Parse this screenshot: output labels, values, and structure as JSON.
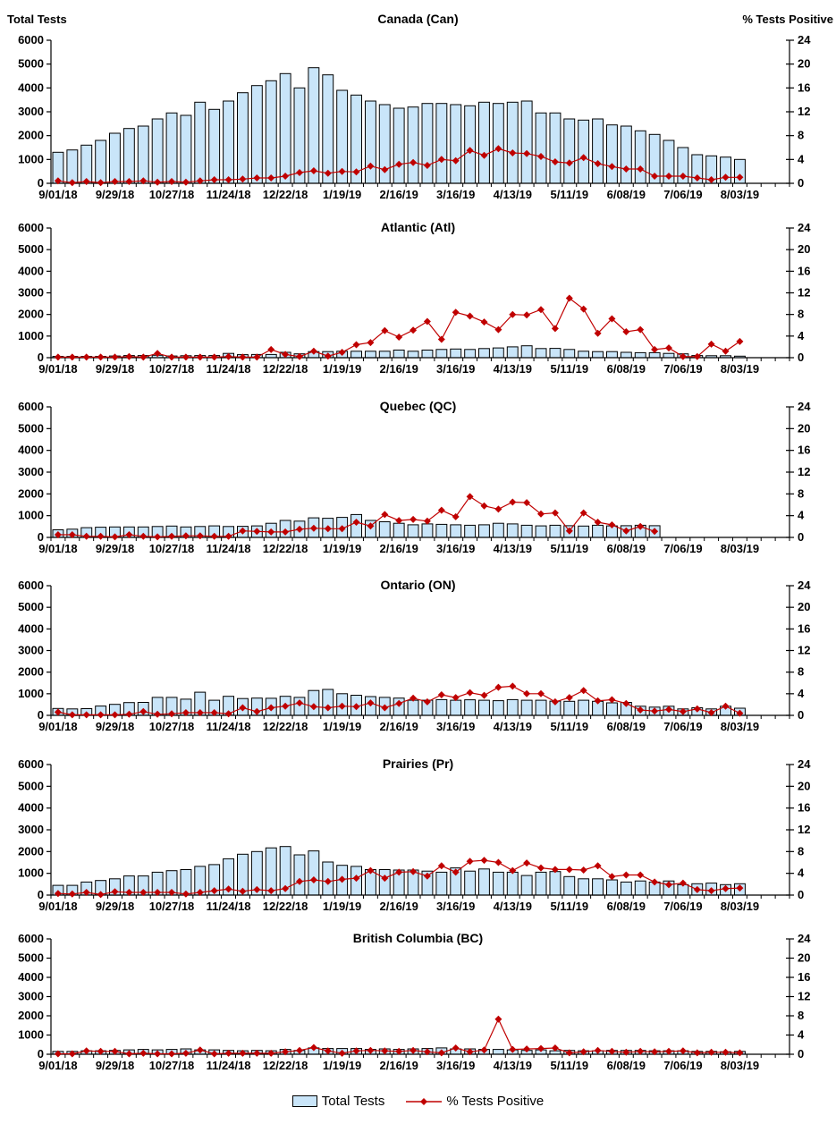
{
  "header": {
    "left_axis_title": "Total Tests",
    "right_axis_title": "% Tests  Positive"
  },
  "legend": {
    "total_tests": "Total Tests",
    "pct_positive": "% Tests Positive"
  },
  "colors": {
    "bar_fill": "#C9E5F9",
    "bar_border": "#000000",
    "line": "#C00000",
    "axis": "#000000",
    "text": "#000000"
  },
  "axes": {
    "y_left_max": 6000,
    "y_right_max": 24,
    "left_tick_labels": [
      "0",
      "1000",
      "2000",
      "3000",
      "4000",
      "5000",
      "6000"
    ],
    "right_tick_labels": [
      "0",
      "4",
      "8",
      "12",
      "16",
      "20",
      "24"
    ],
    "x_tick_labels": [
      "9/01/18",
      "9/29/18",
      "10/27/18",
      "11/24/18",
      "12/22/18",
      "1/19/19",
      "2/16/19",
      "3/16/19",
      "4/13/19",
      "5/11/19",
      "6/08/19",
      "7/06/19",
      "8/03/19"
    ],
    "x_label_every_n_weeks": 4,
    "weeks_with_data": 49
  },
  "chart_data": [
    {
      "type": "bar+line",
      "title": "Canada (Can)",
      "bar_series_name": "Total Tests",
      "line_series_name": "% Tests Positive",
      "y_left_range": [
        0,
        6000
      ],
      "y_right_range": [
        0,
        24
      ],
      "total_tests": [
        1300,
        1400,
        1600,
        1800,
        2100,
        2300,
        2400,
        2700,
        2950,
        2850,
        3400,
        3100,
        3450,
        3800,
        4100,
        4300,
        4600,
        4000,
        4850,
        4550,
        3900,
        3700,
        3450,
        3300,
        3150,
        3200,
        3350,
        3350,
        3300,
        3250,
        3400,
        3350,
        3400,
        3450,
        2950,
        2950,
        2700,
        2650,
        2700,
        2450,
        2400,
        2200,
        2050,
        1800,
        1500,
        1200,
        1150,
        1100,
        1000
      ],
      "pct_positive": [
        0.4,
        0.1,
        0.3,
        0.1,
        0.3,
        0.3,
        0.4,
        0.2,
        0.3,
        0.2,
        0.4,
        0.6,
        0.6,
        0.7,
        0.9,
        0.9,
        1.2,
        1.8,
        2.1,
        1.7,
        2.0,
        1.9,
        2.9,
        2.3,
        3.2,
        3.5,
        3.0,
        4.0,
        3.8,
        5.5,
        4.7,
        5.8,
        5.1,
        5.0,
        4.5,
        3.6,
        3.4,
        4.3,
        3.3,
        2.8,
        2.4,
        2.4,
        1.2,
        1.2,
        1.2,
        0.9,
        0.6,
        1.0,
        1.0
      ]
    },
    {
      "type": "bar+line",
      "title": "Atlantic (Atl)",
      "bar_series_name": "Total Tests",
      "line_series_name": "% Tests Positive",
      "y_left_range": [
        0,
        6000
      ],
      "y_right_range": [
        0,
        24
      ],
      "total_tests": [
        60,
        60,
        60,
        60,
        80,
        100,
        100,
        110,
        80,
        90,
        100,
        100,
        200,
        140,
        150,
        150,
        250,
        180,
        280,
        280,
        300,
        300,
        300,
        300,
        350,
        300,
        350,
        380,
        400,
        380,
        420,
        450,
        500,
        550,
        420,
        430,
        380,
        300,
        280,
        280,
        250,
        230,
        230,
        200,
        180,
        100,
        90,
        90,
        70
      ],
      "pct_positive": [
        0.1,
        0.1,
        0.1,
        0.1,
        0.1,
        0.2,
        0.1,
        0.8,
        0.1,
        0.1,
        0.1,
        0.1,
        0.2,
        0.1,
        0.1,
        1.5,
        0.6,
        0.2,
        1.2,
        0.3,
        1.0,
        2.4,
        2.8,
        5.0,
        3.8,
        5.1,
        6.7,
        3.4,
        8.4,
        7.7,
        6.6,
        5.2,
        8.0,
        7.9,
        8.9,
        5.4,
        11.0,
        9.0,
        4.5,
        7.2,
        4.8,
        5.2,
        1.5,
        1.8,
        0.2,
        0.2,
        2.5,
        1.2,
        3.0
      ]
    },
    {
      "type": "bar+line",
      "title": "Quebec (QC)",
      "bar_series_name": "Total Tests",
      "line_series_name": "% Tests Positive",
      "y_left_range": [
        0,
        6000
      ],
      "y_right_range": [
        0,
        24
      ],
      "total_tests": [
        350,
        380,
        450,
        470,
        480,
        480,
        480,
        500,
        520,
        480,
        500,
        530,
        500,
        510,
        530,
        650,
        780,
        750,
        900,
        880,
        920,
        1050,
        780,
        720,
        650,
        580,
        620,
        600,
        580,
        560,
        580,
        650,
        620,
        560,
        530,
        560,
        540,
        520,
        560,
        530,
        540,
        560,
        540,
        null,
        null,
        null,
        null,
        null,
        null
      ],
      "pct_positive": [
        0.5,
        0.5,
        0.2,
        0.2,
        0.1,
        0.5,
        0.2,
        0.1,
        0.2,
        0.3,
        0.3,
        0.2,
        0.2,
        1.2,
        1.1,
        1.0,
        1.0,
        1.5,
        1.7,
        1.6,
        1.6,
        2.8,
        2.1,
        4.2,
        3.1,
        3.3,
        3.0,
        5.0,
        3.8,
        7.5,
        5.8,
        5.2,
        6.5,
        6.4,
        4.3,
        4.5,
        1.2,
        4.5,
        2.8,
        2.3,
        1.2,
        2.0,
        1.1,
        null,
        null,
        null,
        null,
        null,
        null
      ]
    },
    {
      "type": "bar+line",
      "title": "Ontario (ON)",
      "bar_series_name": "Total Tests",
      "line_series_name": "% Tests Positive",
      "y_left_range": [
        0,
        6000
      ],
      "y_right_range": [
        0,
        24
      ],
      "total_tests": [
        320,
        300,
        310,
        430,
        510,
        590,
        600,
        830,
        830,
        750,
        1070,
        700,
        880,
        780,
        800,
        790,
        880,
        830,
        1150,
        1200,
        1000,
        930,
        870,
        830,
        800,
        700,
        700,
        730,
        700,
        720,
        700,
        680,
        730,
        700,
        700,
        660,
        650,
        700,
        650,
        580,
        600,
        420,
        380,
        420,
        300,
        350,
        300,
        420,
        330
      ],
      "pct_positive": [
        0.6,
        0.1,
        0.1,
        0.1,
        0.1,
        0.2,
        0.7,
        0.2,
        0.3,
        0.5,
        0.5,
        0.5,
        0.3,
        1.4,
        0.7,
        1.4,
        1.7,
        2.3,
        1.6,
        1.4,
        1.7,
        1.6,
        2.3,
        1.4,
        2.2,
        3.2,
        2.5,
        3.8,
        3.3,
        4.2,
        3.7,
        5.2,
        5.4,
        4.0,
        4.0,
        2.5,
        3.3,
        4.6,
        2.7,
        2.9,
        2.2,
        1.0,
        0.8,
        1.1,
        0.7,
        1.2,
        0.5,
        1.7,
        0.4
      ]
    },
    {
      "type": "bar+line",
      "title": "Prairies (Pr)",
      "bar_series_name": "Total Tests",
      "line_series_name": "% Tests Positive",
      "y_left_range": [
        0,
        6000
      ],
      "y_right_range": [
        0,
        24
      ],
      "total_tests": [
        450,
        450,
        600,
        670,
        750,
        880,
        880,
        1050,
        1120,
        1170,
        1320,
        1400,
        1670,
        1880,
        2000,
        2170,
        2230,
        1850,
        2030,
        1520,
        1370,
        1320,
        1170,
        1170,
        1150,
        1150,
        1100,
        1050,
        1250,
        1100,
        1200,
        1050,
        1050,
        900,
        1050,
        1080,
        850,
        750,
        750,
        700,
        600,
        650,
        600,
        650,
        480,
        520,
        550,
        480,
        520
      ],
      "pct_positive": [
        0.3,
        0.2,
        0.5,
        0.1,
        0.6,
        0.5,
        0.5,
        0.5,
        0.5,
        0.2,
        0.5,
        0.8,
        1.1,
        0.7,
        1.0,
        0.8,
        1.2,
        2.5,
        2.8,
        2.5,
        2.9,
        3.1,
        4.5,
        3.1,
        4.2,
        4.3,
        3.5,
        5.4,
        4.2,
        6.2,
        6.4,
        6.0,
        4.5,
        5.9,
        5.0,
        4.7,
        4.7,
        4.6,
        5.4,
        3.4,
        3.7,
        3.7,
        2.4,
        1.9,
        2.2,
        1.0,
        0.8,
        1.2,
        1.3
      ]
    },
    {
      "type": "bar+line",
      "title": "British Columbia (BC)",
      "bar_series_name": "Total Tests",
      "line_series_name": "% Tests Positive",
      "y_left_range": [
        0,
        6000
      ],
      "y_right_range": [
        0,
        24
      ],
      "total_tests": [
        150,
        150,
        180,
        180,
        200,
        230,
        250,
        230,
        250,
        280,
        230,
        230,
        200,
        180,
        200,
        180,
        250,
        200,
        330,
        300,
        300,
        300,
        250,
        280,
        250,
        280,
        300,
        330,
        280,
        280,
        250,
        250,
        230,
        200,
        230,
        180,
        200,
        180,
        180,
        200,
        200,
        200,
        180,
        180,
        180,
        150,
        150,
        130,
        150
      ],
      "pct_positive": [
        0.1,
        0.1,
        0.7,
        0.6,
        0.6,
        0.1,
        0.2,
        0.1,
        0.1,
        0.2,
        0.9,
        0.1,
        0.2,
        0.2,
        0.2,
        0.2,
        0.5,
        0.8,
        1.4,
        0.7,
        0.2,
        0.7,
        0.8,
        0.7,
        0.6,
        0.8,
        0.5,
        0.3,
        1.3,
        0.5,
        0.9,
        7.3,
        1.0,
        1.1,
        1.2,
        1.3,
        0.3,
        0.5,
        0.8,
        0.6,
        0.4,
        0.6,
        0.5,
        0.6,
        0.7,
        0.3,
        0.4,
        0.4,
        0.3
      ]
    }
  ]
}
